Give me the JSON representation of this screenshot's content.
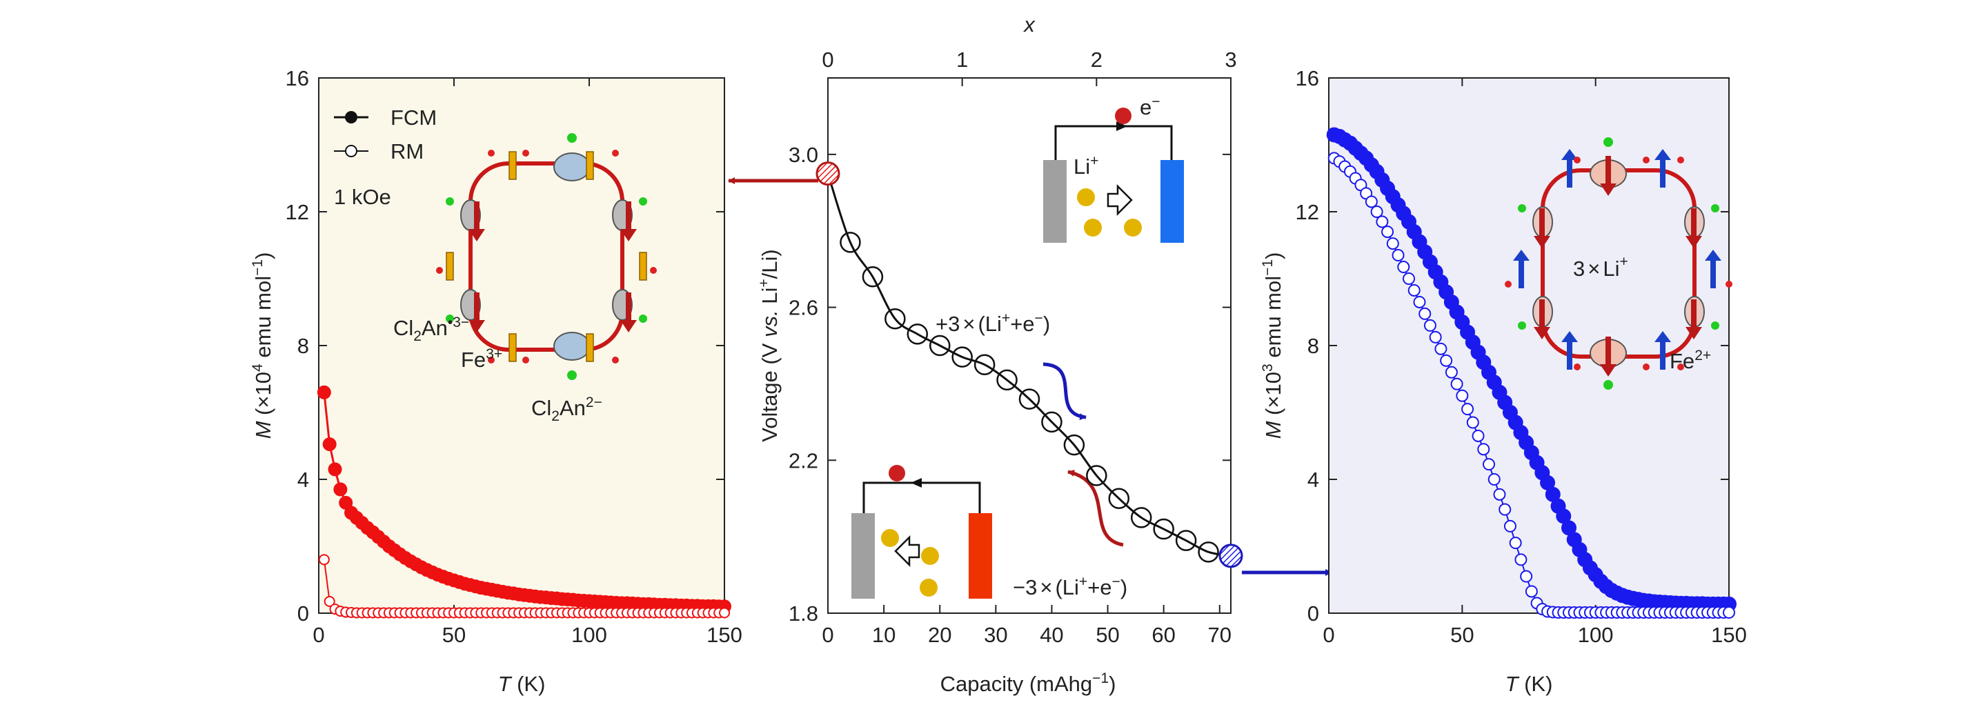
{
  "colors": {
    "left_bg": "#fbf8ea",
    "right_bg": "#eeeef8",
    "red": "#ee1111",
    "blue": "#1a1aee",
    "dark_red": "#b01818",
    "dark_blue": "#1a1ab8",
    "fe3_spin": "#e8a800",
    "fe2_spin": "#1a40c8",
    "gold_ion": "#e2b400",
    "battery_gray": "#a0a0a0",
    "battery_blue": "#1a70f0",
    "battery_red": "#ee3300",
    "electron_red": "#cc2020"
  },
  "chart_data": [
    {
      "id": "left",
      "type": "scatter",
      "xlabel": "T (K)",
      "ylabel": "M (×10⁴ emu mol⁻¹)",
      "xlim": [
        0,
        150
      ],
      "ylim": [
        0,
        16
      ],
      "xticks": [
        "0",
        "50",
        "100",
        "150"
      ],
      "yticks": [
        "0",
        "4",
        "8",
        "12",
        "16"
      ],
      "grid": false,
      "legend": {
        "position": "top-left",
        "entries": [
          "FCM",
          "RM"
        ]
      },
      "annotations": {
        "field": "1 kOe",
        "cl2an_rad": "Cl2An•3−",
        "fe3": "Fe3+",
        "cl2an": "Cl2An2−"
      },
      "series": [
        {
          "name": "FCM",
          "marker": "filled-circle",
          "x": [
            2,
            4,
            6,
            8,
            10,
            12,
            14,
            16,
            18,
            20,
            22,
            24,
            26,
            28,
            30,
            32,
            34,
            36,
            38,
            40,
            42,
            44,
            46,
            48,
            50,
            52,
            54,
            56,
            58,
            60,
            62,
            64,
            66,
            68,
            70,
            72,
            74,
            76,
            78,
            80,
            82,
            84,
            86,
            88,
            90,
            92,
            94,
            96,
            98,
            100,
            102,
            104,
            106,
            108,
            110,
            112,
            114,
            116,
            118,
            120,
            122,
            124,
            126,
            128,
            130,
            132,
            134,
            136,
            138,
            140,
            142,
            144,
            146,
            148,
            150
          ],
          "y": [
            6.6,
            5.05,
            4.3,
            3.7,
            3.3,
            3.0,
            2.85,
            2.7,
            2.55,
            2.42,
            2.28,
            2.14,
            2.0,
            1.88,
            1.76,
            1.65,
            1.55,
            1.46,
            1.37,
            1.29,
            1.22,
            1.15,
            1.09,
            1.03,
            0.98,
            0.93,
            0.88,
            0.84,
            0.8,
            0.76,
            0.73,
            0.7,
            0.67,
            0.64,
            0.61,
            0.59,
            0.56,
            0.54,
            0.52,
            0.5,
            0.48,
            0.47,
            0.45,
            0.44,
            0.42,
            0.41,
            0.4,
            0.38,
            0.37,
            0.36,
            0.35,
            0.34,
            0.33,
            0.32,
            0.31,
            0.3,
            0.3,
            0.29,
            0.28,
            0.27,
            0.27,
            0.26,
            0.25,
            0.25,
            0.24,
            0.24,
            0.23,
            0.23,
            0.22,
            0.22,
            0.21,
            0.21,
            0.21,
            0.2,
            0.2
          ]
        },
        {
          "name": "RM",
          "marker": "open-circle",
          "x": [
            2,
            4,
            6,
            8,
            10,
            12,
            14,
            16,
            18,
            20,
            22,
            24,
            26,
            28,
            30,
            32,
            34,
            36,
            38,
            40,
            42,
            44,
            46,
            48,
            50,
            52,
            54,
            56,
            58,
            60,
            62,
            64,
            66,
            68,
            70,
            72,
            74,
            76,
            78,
            80,
            82,
            84,
            86,
            88,
            90,
            92,
            94,
            96,
            98,
            100,
            102,
            104,
            106,
            108,
            110,
            112,
            114,
            116,
            118,
            120,
            122,
            124,
            126,
            128,
            130,
            132,
            134,
            136,
            138,
            140,
            142,
            144,
            146,
            148,
            150
          ],
          "y": [
            1.6,
            0.35,
            0.12,
            0.06,
            0.03,
            0.02,
            0.01,
            0.01,
            0.01,
            0.01,
            0.01,
            0.01,
            0.01,
            0.01,
            0.01,
            0.01,
            0.01,
            0.01,
            0.01,
            0.01,
            0.01,
            0.01,
            0.01,
            0.01,
            0.01,
            0.01,
            0.01,
            0.01,
            0.01,
            0.01,
            0.01,
            0.01,
            0.01,
            0.01,
            0.01,
            0.01,
            0.01,
            0.01,
            0.01,
            0.01,
            0.01,
            0.01,
            0.01,
            0.01,
            0.01,
            0.01,
            0.01,
            0.01,
            0.01,
            0.01,
            0.01,
            0.01,
            0.01,
            0.01,
            0.01,
            0.01,
            0.01,
            0.01,
            0.01,
            0.01,
            0.01,
            0.01,
            0.01,
            0.01,
            0.01,
            0.01,
            0.01,
            0.01,
            0.01,
            0.01,
            0.01,
            0.01,
            0.01,
            0.01,
            0.01
          ]
        }
      ]
    },
    {
      "id": "middle",
      "type": "line",
      "xlabel": "Capacity (mAhg−1)",
      "ylabel": "Voltage (V vs. Li+/Li)",
      "top_xlabel": "x",
      "xlim": [
        0,
        72
      ],
      "ylim": [
        1.8,
        3.2
      ],
      "xticks": [
        "0",
        "10",
        "20",
        "30",
        "40",
        "50",
        "60",
        "70"
      ],
      "yticks": [
        "1.8",
        "2.2",
        "2.6",
        "3.0"
      ],
      "top_xticks": [
        "0",
        "1",
        "2",
        "3"
      ],
      "grid": false,
      "annotations": {
        "discharge": "+3×(Li+ + e−)",
        "charge": "−3×(Li+ + e−)",
        "electron": "e−",
        "li": "Li+"
      },
      "series": [
        {
          "name": "",
          "marker": "open-circle",
          "x": [
            0,
            4,
            8,
            12,
            16,
            20,
            24,
            28,
            32,
            36,
            40,
            44,
            48,
            52,
            56,
            60,
            64,
            68,
            72
          ],
          "y": [
            2.95,
            2.77,
            2.68,
            2.57,
            2.53,
            2.5,
            2.47,
            2.45,
            2.41,
            2.36,
            2.3,
            2.24,
            2.16,
            2.1,
            2.05,
            2.02,
            1.99,
            1.96,
            1.95
          ]
        }
      ],
      "highlight_points": [
        {
          "x": 0,
          "y": 2.95,
          "color": "red"
        },
        {
          "x": 72,
          "y": 1.95,
          "color": "blue"
        }
      ]
    },
    {
      "id": "right",
      "type": "scatter",
      "xlabel": "T (K)",
      "ylabel": "M (×10³ emu mol⁻¹)",
      "xlim": [
        0,
        150
      ],
      "ylim": [
        0,
        16
      ],
      "xticks": [
        "0",
        "50",
        "100",
        "150"
      ],
      "yticks": [
        "0",
        "4",
        "8",
        "12",
        "16"
      ],
      "grid": false,
      "annotations": {
        "li": "3×Li+",
        "fe2": "Fe2+"
      },
      "series": [
        {
          "name": "FCM",
          "marker": "filled-circle",
          "x": [
            2,
            4,
            6,
            8,
            10,
            12,
            14,
            16,
            18,
            20,
            22,
            24,
            26,
            28,
            30,
            32,
            34,
            36,
            38,
            40,
            42,
            44,
            46,
            48,
            50,
            52,
            54,
            56,
            58,
            60,
            62,
            64,
            66,
            68,
            70,
            72,
            74,
            76,
            78,
            80,
            82,
            84,
            86,
            88,
            90,
            92,
            94,
            96,
            98,
            100,
            102,
            104,
            106,
            108,
            110,
            112,
            114,
            116,
            118,
            120,
            122,
            124,
            126,
            128,
            130,
            132,
            134,
            136,
            138,
            140,
            142,
            144,
            146,
            148,
            150
          ],
          "y": [
            14.3,
            14.25,
            14.15,
            14.05,
            13.9,
            13.75,
            13.6,
            13.4,
            13.2,
            12.95,
            12.7,
            12.45,
            12.2,
            11.95,
            11.7,
            11.4,
            11.1,
            10.8,
            10.5,
            10.2,
            9.9,
            9.6,
            9.3,
            9.0,
            8.7,
            8.4,
            8.1,
            7.8,
            7.5,
            7.2,
            6.9,
            6.6,
            6.3,
            6.0,
            5.7,
            5.4,
            5.1,
            4.8,
            4.5,
            4.2,
            3.9,
            3.55,
            3.2,
            2.9,
            2.55,
            2.2,
            1.9,
            1.6,
            1.35,
            1.15,
            0.95,
            0.8,
            0.68,
            0.6,
            0.53,
            0.48,
            0.44,
            0.41,
            0.38,
            0.36,
            0.34,
            0.33,
            0.32,
            0.31,
            0.3,
            0.29,
            0.29,
            0.28,
            0.28,
            0.28,
            0.27,
            0.27,
            0.27,
            0.27,
            0.27
          ]
        },
        {
          "name": "RM",
          "marker": "open-circle",
          "x": [
            2,
            4,
            6,
            8,
            10,
            12,
            14,
            16,
            18,
            20,
            22,
            24,
            26,
            28,
            30,
            32,
            34,
            36,
            38,
            40,
            42,
            44,
            46,
            48,
            50,
            52,
            54,
            56,
            58,
            60,
            62,
            64,
            66,
            68,
            70,
            72,
            74,
            76,
            78,
            80,
            82,
            84,
            86,
            88,
            90,
            92,
            94,
            96,
            98,
            100,
            102,
            104,
            106,
            108,
            110,
            112,
            114,
            116,
            118,
            120,
            122,
            124,
            126,
            128,
            130,
            132,
            134,
            136,
            138,
            140,
            142,
            144,
            146,
            148,
            150
          ],
          "y": [
            13.6,
            13.5,
            13.35,
            13.2,
            13.0,
            12.8,
            12.55,
            12.3,
            12.0,
            11.7,
            11.4,
            11.05,
            10.7,
            10.35,
            10.0,
            9.65,
            9.3,
            8.95,
            8.6,
            8.25,
            7.9,
            7.55,
            7.2,
            6.85,
            6.5,
            6.1,
            5.7,
            5.3,
            4.9,
            4.45,
            4.0,
            3.55,
            3.1,
            2.6,
            2.1,
            1.6,
            1.1,
            0.65,
            0.3,
            0.12,
            0.05,
            0.03,
            0.02,
            0.02,
            0.02,
            0.02,
            0.02,
            0.02,
            0.02,
            0.02,
            0.02,
            0.02,
            0.02,
            0.02,
            0.02,
            0.02,
            0.02,
            0.02,
            0.02,
            0.02,
            0.02,
            0.02,
            0.02,
            0.02,
            0.02,
            0.02,
            0.02,
            0.02,
            0.02,
            0.02,
            0.02,
            0.02,
            0.02,
            0.02,
            0.02
          ]
        }
      ]
    }
  ]
}
